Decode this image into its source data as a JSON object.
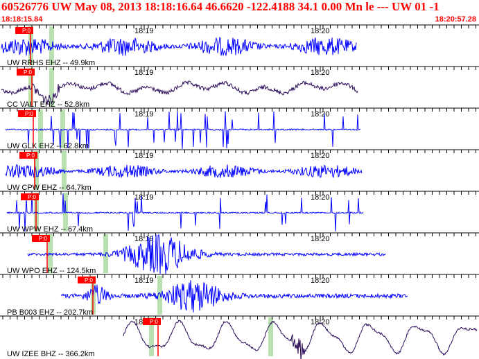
{
  "header": {
    "title": "60526776 UW May 08, 2013 18:18:16.64   46.6620 -122.4188 34.1 0.00 Mn le --- UW 01  -1",
    "time_start": "18:18:15.84",
    "time_end": "18:20:57.28"
  },
  "time_ticks": [
    "18:19",
    "18:20"
  ],
  "colors": {
    "blue_trace": "#0000ff",
    "dark_trace": "#2a0a5a",
    "pick": "#ff0000",
    "window": "#b8e0b0",
    "header_text": "#ff0000"
  },
  "traces": [
    {
      "label": "UW RRHS EHZ -- 49.9km",
      "pick": "P:0",
      "color": "blue_trace"
    },
    {
      "label": "CC VALT EHZ -- 52.8km",
      "pick": "P:0",
      "color": "dark_trace"
    },
    {
      "label": "UW GLK EHZ -- 62.8km",
      "pick": "P:0",
      "color": "blue_trace"
    },
    {
      "label": "UW CPW EHZ -- 64.7km",
      "pick": "P:0",
      "color": "blue_trace"
    },
    {
      "label": "UW WPW EHZ -- 67.4km",
      "pick": "P:0",
      "color": "blue_trace"
    },
    {
      "label": "UW WPO EHZ -- 124.5km",
      "pick": "P:0",
      "color": "blue_trace"
    },
    {
      "label": "PB B003 EHZ -- 202.7km",
      "pick": "P:0",
      "color": "blue_trace"
    },
    {
      "label": "UW IZEE BHZ -- 366.2km",
      "pick": "P:0",
      "color": "dark_trace"
    }
  ]
}
